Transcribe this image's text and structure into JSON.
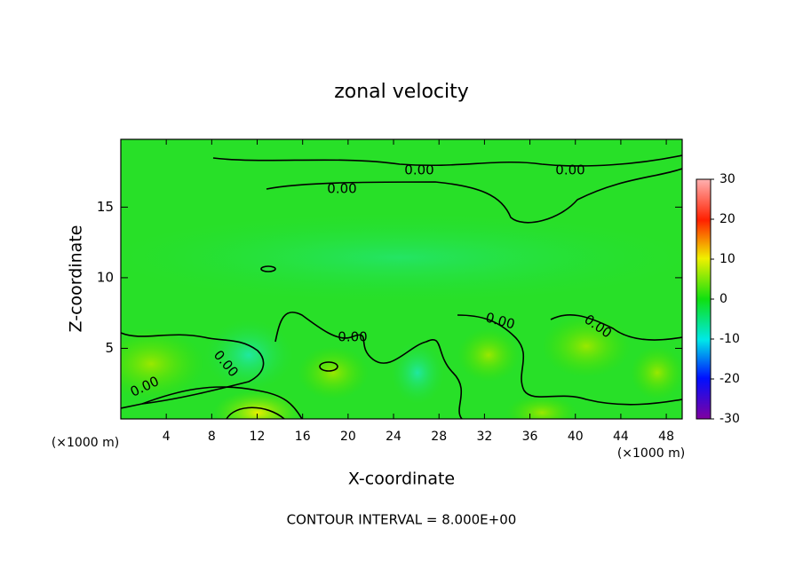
{
  "chart_data": {
    "type": "contour",
    "title": "zonal velocity",
    "x_label": "X-coordinate",
    "y_label": "Z-coordinate",
    "x_unit_left": "(×1000 m)",
    "x_unit_right": "(×1000 m)",
    "xlim": [
      0,
      49.4
    ],
    "xticks": [
      4,
      8,
      12,
      16,
      20,
      24,
      28,
      32,
      36,
      40,
      44,
      48
    ],
    "ylim": [
      0,
      19.8
    ],
    "yticks": [
      5,
      10,
      15
    ],
    "colorbar_lim": [
      -30,
      30
    ],
    "colorbar_ticks": [
      30,
      20,
      10,
      0,
      -10,
      -20,
      -30
    ],
    "contour_labels": [
      "0.00",
      "0.00",
      "0.00",
      "0.00",
      "0.00",
      "0.00",
      "0.00",
      "0.00"
    ],
    "footnote": "CONTOUR INTERVAL = 8.000E+00"
  }
}
